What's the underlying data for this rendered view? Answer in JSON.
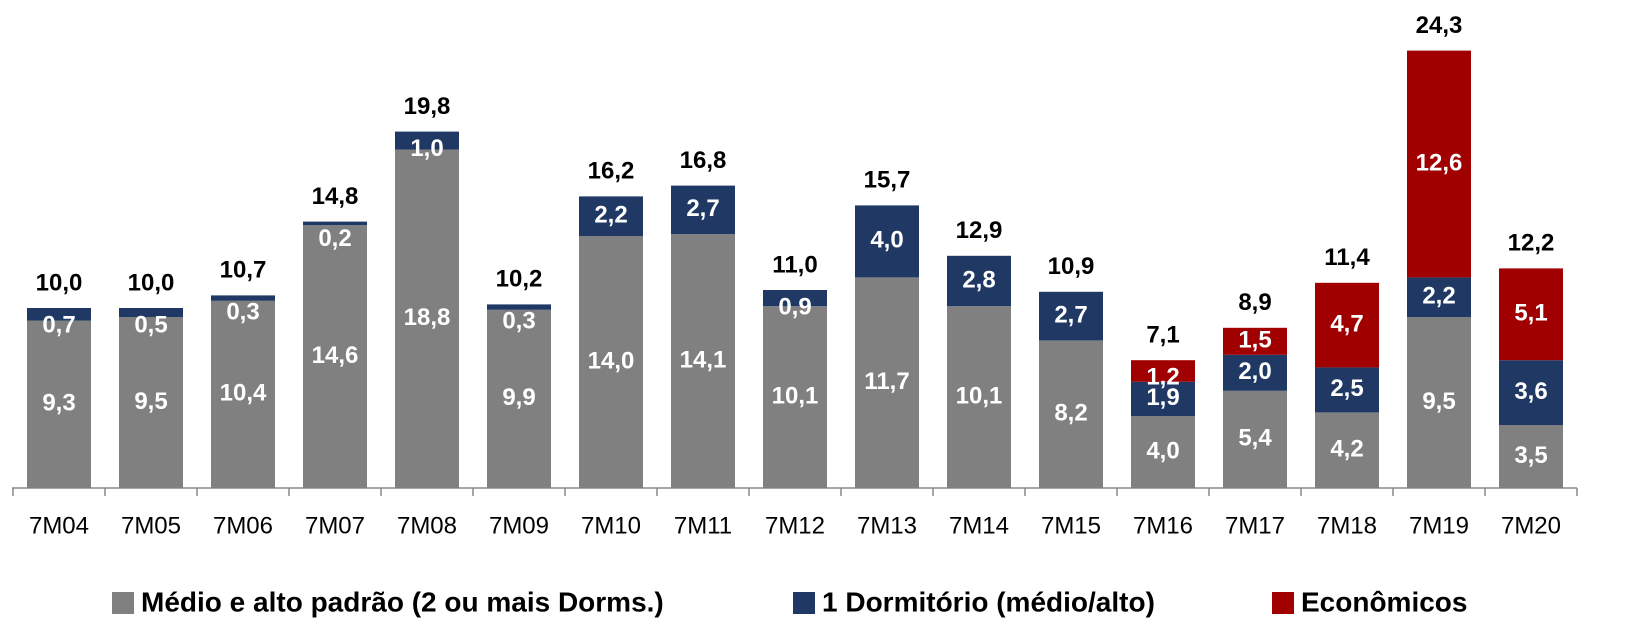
{
  "chart_data": {
    "type": "stacked_bar",
    "categories": [
      "7M04",
      "7M05",
      "7M06",
      "7M07",
      "7M08",
      "7M09",
      "7M10",
      "7M11",
      "7M12",
      "7M13",
      "7M14",
      "7M15",
      "7M16",
      "7M17",
      "7M18",
      "7M19",
      "7M20"
    ],
    "series": [
      {
        "name": "Médio e alto padrão (2 ou mais Dorms.)",
        "color": "#808080",
        "values": [
          9.3,
          9.5,
          10.4,
          14.6,
          18.8,
          9.9,
          14.0,
          14.1,
          10.1,
          11.7,
          10.1,
          8.2,
          4.0,
          5.4,
          4.2,
          9.5,
          3.5
        ],
        "value_labels": [
          "9,3",
          "9,5",
          "10,4",
          "14,6",
          "18,8",
          "9,9",
          "14,0",
          "14,1",
          "10,1",
          "11,7",
          "10,1",
          "8,2",
          "4,0",
          "5,4",
          "4,2",
          "9,5",
          "3,5"
        ]
      },
      {
        "name": "1 Dormitório (médio/alto)",
        "color": "#1f3864",
        "values": [
          0.7,
          0.5,
          0.3,
          0.2,
          1.0,
          0.3,
          2.2,
          2.7,
          0.9,
          4.0,
          2.8,
          2.7,
          1.9,
          2.0,
          2.5,
          2.2,
          3.6
        ],
        "value_labels": [
          "0,7",
          "0,5",
          "0,3",
          "0,2",
          "1,0",
          "0,3",
          "2,2",
          "2,7",
          "0,9",
          "4,0",
          "2,8",
          "2,7",
          "1,9",
          "2,0",
          "2,5",
          "2,2",
          "3,6"
        ]
      },
      {
        "name": "Econômicos",
        "color": "#a00000",
        "values": [
          null,
          null,
          null,
          null,
          null,
          null,
          null,
          null,
          null,
          null,
          null,
          null,
          1.2,
          1.5,
          4.7,
          12.6,
          5.1
        ],
        "value_labels": [
          null,
          null,
          null,
          null,
          null,
          null,
          null,
          null,
          null,
          null,
          null,
          null,
          "1,2",
          "1,5",
          "4,7",
          "12,6",
          "5,1"
        ]
      }
    ],
    "totals": [
      10.0,
      10.0,
      10.7,
      14.8,
      19.8,
      10.2,
      16.2,
      16.8,
      11.0,
      15.7,
      12.9,
      10.9,
      7.1,
      8.9,
      11.4,
      24.3,
      12.2
    ],
    "total_labels": [
      "10,0",
      "10,0",
      "10,7",
      "14,8",
      "19,8",
      "10,2",
      "16,2",
      "16,8",
      "11,0",
      "15,7",
      "12,9",
      "10,9",
      "7,1",
      "8,9",
      "11,4",
      "24,3",
      "12,2"
    ]
  }
}
